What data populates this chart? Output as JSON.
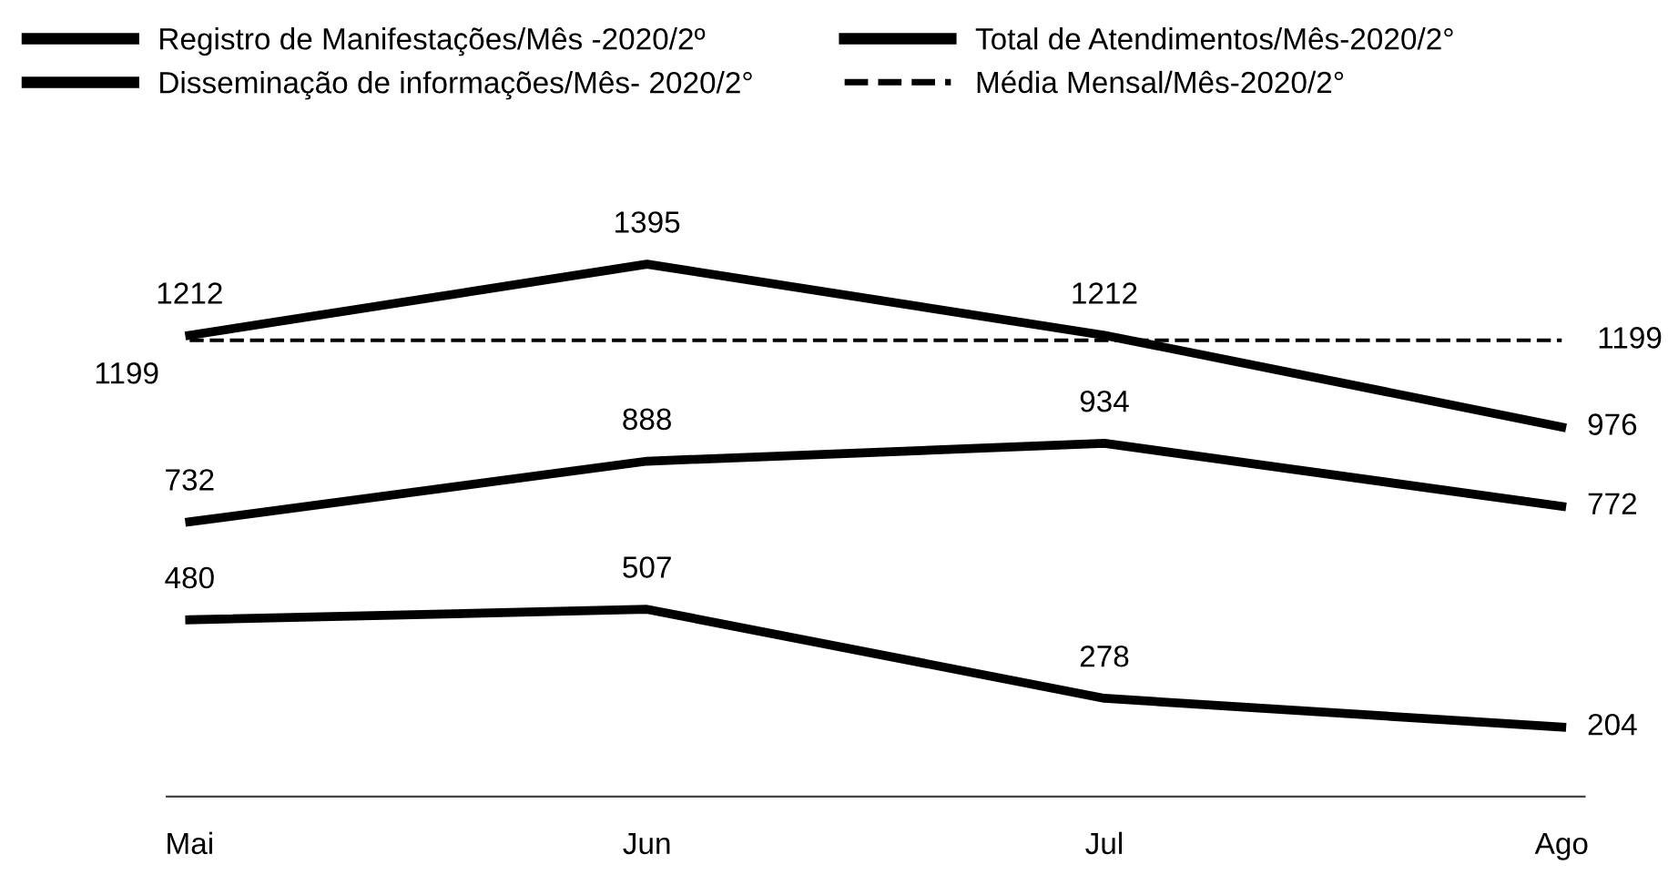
{
  "chart_data": {
    "type": "line",
    "categories": [
      "Mai",
      "Jun",
      "Jul",
      "Ago"
    ],
    "series": [
      {
        "name": "Registro de Manifestações/Mês -2020/2º",
        "color": "#000000",
        "values": [
          480,
          507,
          278,
          204
        ],
        "value_labels": [
          "480",
          "507",
          "278",
          "204"
        ]
      },
      {
        "name": "Disseminação de informações/Mês- 2020/2°",
        "color": "#000000",
        "values": [
          732,
          888,
          934,
          772
        ],
        "value_labels": [
          "732",
          "888",
          "934",
          "772"
        ]
      },
      {
        "name": "Total de Atendimentos/Mês-2020/2°",
        "color": "#000000",
        "values": [
          1212,
          1395,
          1212,
          976
        ],
        "value_labels": [
          "1212",
          "1395",
          "1212",
          "976"
        ]
      },
      {
        "name": "Média Mensal/Mês-2020/2°",
        "color": "#000000",
        "line_style": "dashed",
        "values": [
          1199,
          1199,
          1199,
          1199
        ],
        "value_labels": [
          "1199",
          null,
          null,
          "1199"
        ]
      }
    ],
    "legend": "top",
    "grid": false,
    "marker": "none",
    "line_style": "solid"
  }
}
